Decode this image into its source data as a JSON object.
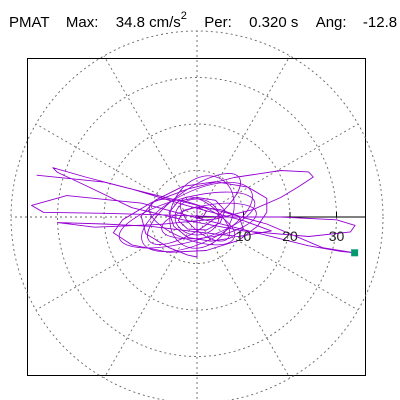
{
  "header": {
    "station": "PMAT",
    "max_label": "Max:",
    "max_value": "34.8 cm/s",
    "max_exp": "2",
    "per_label": "Per:",
    "per_value": "0.320 s",
    "ang_label": "Ang:",
    "ang_value": "-12.8"
  },
  "chart_data": {
    "type": "polar-trace",
    "radial_ticks": [
      10,
      20,
      30
    ],
    "radial_max": 40,
    "angular_spokes_deg": [
      0,
      30,
      60,
      90,
      120,
      150,
      180,
      210,
      240,
      270,
      300,
      330
    ],
    "grid": true,
    "trace_color": "#9400d3",
    "marker_color": "#009a6e",
    "marker_shape": "square",
    "peak": {
      "value": 34.8,
      "angle_deg": -12.8,
      "x": 33.9,
      "y": -7.7
    },
    "trace": [
      [
        -34.5,
        9.0
      ],
      [
        -20,
        7.5
      ],
      [
        -8,
        4.5
      ],
      [
        3,
        1.8
      ],
      [
        15,
        -1.5
      ],
      [
        27,
        -6.6
      ],
      [
        33.9,
        -7.7
      ],
      [
        31,
        -7.4
      ],
      [
        24,
        -6.2
      ],
      [
        12,
        -3.2
      ],
      [
        0,
        -0.2
      ],
      [
        -12,
        3.0
      ],
      [
        -28,
        4.6
      ],
      [
        -35.6,
        2.5
      ],
      [
        -33,
        1.0
      ],
      [
        -20,
        0.8
      ],
      [
        -6,
        0.4
      ],
      [
        6,
        0.0
      ],
      [
        18,
        0.0
      ],
      [
        30,
        -0.6
      ],
      [
        34,
        -1.8
      ],
      [
        33,
        -3.2
      ],
      [
        24,
        -4.2
      ],
      [
        10,
        -3.0
      ],
      [
        -3,
        -0.6
      ],
      [
        -14,
        2.0
      ],
      [
        -24,
        6.8
      ],
      [
        -30,
        9.6
      ],
      [
        -31,
        10.6
      ],
      [
        -24,
        8.6
      ],
      [
        -14,
        6.0
      ],
      [
        -2,
        2.4
      ],
      [
        10,
        -0.8
      ],
      [
        16,
        -3.0
      ],
      [
        9,
        -4.2
      ],
      [
        0,
        -3.2
      ],
      [
        -10,
        -2.0
      ],
      [
        -20,
        -1.5
      ],
      [
        -30,
        -1.2
      ],
      [
        -22,
        -2.2
      ],
      [
        -8,
        -1.6
      ],
      [
        4,
        -0.4
      ],
      [
        12,
        1.6
      ],
      [
        18,
        4.2
      ],
      [
        22,
        6.6
      ],
      [
        25,
        8.6
      ],
      [
        24,
        9.7
      ],
      [
        18,
        10.0
      ],
      [
        8,
        8.5
      ],
      [
        -2,
        6.0
      ],
      [
        -10,
        3.0
      ],
      [
        -16,
        -0.6
      ],
      [
        -18,
        -3.4
      ],
      [
        -14,
        -6.0
      ],
      [
        -6,
        -7.6
      ],
      [
        2,
        -7.2
      ],
      [
        9,
        -5.0
      ],
      [
        13,
        -2.0
      ],
      [
        15,
        1.0
      ],
      [
        15,
        4.0
      ],
      [
        11,
        6.4
      ],
      [
        4,
        7.6
      ],
      [
        -3,
        6.6
      ],
      [
        -9,
        3.6
      ],
      [
        -12,
        0.2
      ],
      [
        -11,
        -3.6
      ],
      [
        -6,
        -6.6
      ],
      [
        -2,
        -8.2
      ],
      [
        0,
        -8.6
      ],
      [
        0,
        -5.0
      ],
      [
        0,
        -2.0
      ],
      [
        0,
        1.0
      ],
      [
        0,
        2.2
      ],
      [
        5,
        1.6
      ],
      [
        9,
        0.2
      ],
      [
        10,
        -2.6
      ],
      [
        7,
        -4.6
      ],
      [
        3,
        -5.2
      ],
      [
        -2,
        -4.4
      ],
      [
        -5,
        -2.0
      ],
      [
        -6,
        1.0
      ],
      [
        -4,
        3.4
      ],
      [
        0,
        4.2
      ],
      [
        4,
        3.6
      ],
      [
        6,
        1.4
      ],
      [
        5,
        -1.2
      ],
      [
        2,
        -2.8
      ],
      [
        -2,
        -2.6
      ],
      [
        -4,
        -0.8
      ],
      [
        -3,
        1.4
      ],
      [
        0,
        2.2
      ],
      [
        2,
        1.2
      ],
      [
        1,
        -0.4
      ],
      [
        0,
        0
      ]
    ]
  }
}
